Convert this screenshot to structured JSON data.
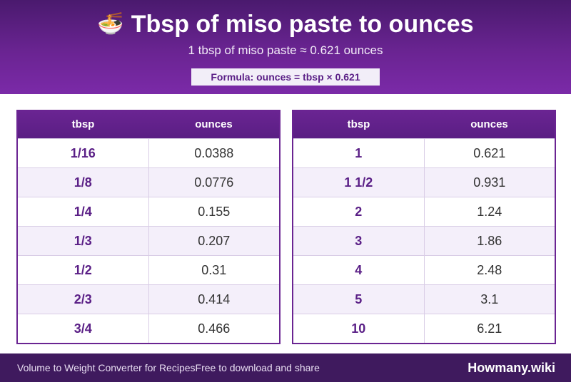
{
  "header": {
    "emoji": "🍜",
    "title": "Tbsp of miso paste to ounces",
    "subtitle": "1 tbsp of miso paste ≈ 0.621 ounces",
    "formula": "Formula: ounces = tbsp × 0.621"
  },
  "tables": {
    "left": {
      "col_tbsp": "tbsp",
      "col_oz": "ounces",
      "rows": [
        {
          "tbsp": "1/16",
          "oz": "0.0388"
        },
        {
          "tbsp": "1/8",
          "oz": "0.0776"
        },
        {
          "tbsp": "1/4",
          "oz": "0.155"
        },
        {
          "tbsp": "1/3",
          "oz": "0.207"
        },
        {
          "tbsp": "1/2",
          "oz": "0.31"
        },
        {
          "tbsp": "2/3",
          "oz": "0.414"
        },
        {
          "tbsp": "3/4",
          "oz": "0.466"
        }
      ]
    },
    "right": {
      "col_tbsp": "tbsp",
      "col_oz": "ounces",
      "rows": [
        {
          "tbsp": "1",
          "oz": "0.621"
        },
        {
          "tbsp": "1 1/2",
          "oz": "0.931"
        },
        {
          "tbsp": "2",
          "oz": "1.24"
        },
        {
          "tbsp": "3",
          "oz": "1.86"
        },
        {
          "tbsp": "4",
          "oz": "2.48"
        },
        {
          "tbsp": "5",
          "oz": "3.1"
        },
        {
          "tbsp": "10",
          "oz": "6.21"
        }
      ]
    }
  },
  "footer": {
    "left_text": "Volume to Weight Converter for RecipesFree to download and share",
    "brand": "Howmany.wiki"
  }
}
